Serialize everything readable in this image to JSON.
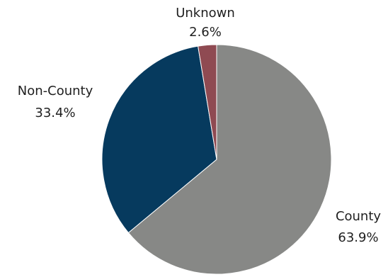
{
  "chart_data": {
    "type": "pie",
    "start_angle_deg": 0,
    "direction": "clockwise",
    "slices": [
      {
        "label": "County",
        "value": 63.9,
        "value_label": "63.9%",
        "color": "#878886"
      },
      {
        "label": "Non-County",
        "value": 33.4,
        "value_label": "33.4%",
        "color": "#063a5e"
      },
      {
        "label": "Unknown",
        "value": 2.6,
        "value_label": "2.6%",
        "color": "#8f4a52"
      }
    ]
  }
}
